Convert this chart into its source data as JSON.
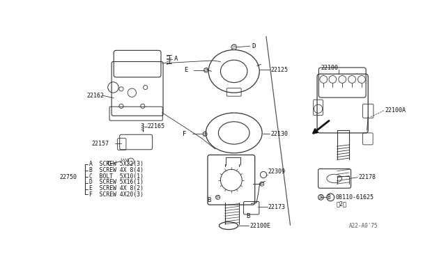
{
  "bg_color": "#ffffff",
  "line_color": "#333333",
  "text_color": "#111111",
  "legend_items": [
    [
      "A",
      "SCREW 5X22(3)"
    ],
    [
      "B",
      "SCREW 4X 8(4)"
    ],
    [
      "C",
      "BOLT  5X10(1)"
    ],
    [
      "D",
      "SCREW 5X16(1)"
    ],
    [
      "E",
      "SCREW 4X 8(2)"
    ],
    [
      "F",
      "SCREW 4X20(3)"
    ]
  ],
  "diagram_note": "A22-A0'75"
}
